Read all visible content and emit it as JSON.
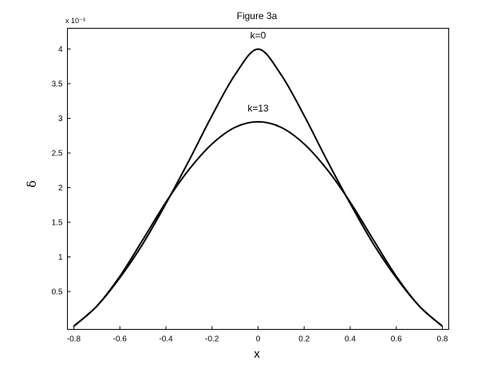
{
  "chart_data": {
    "type": "line",
    "title": "Figure 3a",
    "xlabel": "x",
    "ylabel": "δ",
    "y_exponent_label": "x 10⁻³",
    "xlim": [
      -0.8,
      0.8
    ],
    "ylim": [
      0,
      4.3
    ],
    "x_ticks": [
      -0.8,
      -0.6,
      -0.4,
      -0.2,
      0,
      0.2,
      0.4,
      0.6,
      0.8
    ],
    "x_tick_labels": [
      "-0.8",
      "-0.6",
      "-0.4",
      "-0.2",
      "0",
      "0.2",
      "0.4",
      "0.6",
      "0.8"
    ],
    "y_ticks": [
      0.5,
      1,
      1.5,
      2,
      2.5,
      3,
      3.5,
      4
    ],
    "y_tick_labels": [
      "0.5",
      "1",
      "1.5",
      "2",
      "2.5",
      "3",
      "3.5",
      "4"
    ],
    "grid": false,
    "legend": "none",
    "line_color": "#000000",
    "series": [
      {
        "name": "k=0",
        "x": [
          -0.8,
          -0.7,
          -0.6,
          -0.5,
          -0.4,
          -0.3,
          -0.2,
          -0.1,
          0,
          0.1,
          0.2,
          0.3,
          0.4,
          0.5,
          0.6,
          0.7,
          0.8
        ],
        "values": [
          0,
          0.29,
          0.7,
          1.19,
          1.77,
          2.39,
          3.04,
          3.63,
          4.0,
          3.63,
          3.04,
          2.39,
          1.77,
          1.19,
          0.7,
          0.29,
          0
        ]
      },
      {
        "name": "k=13",
        "x": [
          -0.8,
          -0.7,
          -0.6,
          -0.5,
          -0.4,
          -0.3,
          -0.2,
          -0.1,
          0,
          0.1,
          0.2,
          0.3,
          0.4,
          0.5,
          0.6,
          0.7,
          0.8
        ],
        "values": [
          0,
          0.29,
          0.72,
          1.25,
          1.79,
          2.26,
          2.63,
          2.87,
          2.95,
          2.87,
          2.63,
          2.26,
          1.79,
          1.25,
          0.72,
          0.29,
          0
        ]
      }
    ],
    "annotations": [
      {
        "text": "k=0",
        "x": 0,
        "y": 4.15
      },
      {
        "text": "k=13",
        "x": 0,
        "y": 3.1
      }
    ]
  }
}
